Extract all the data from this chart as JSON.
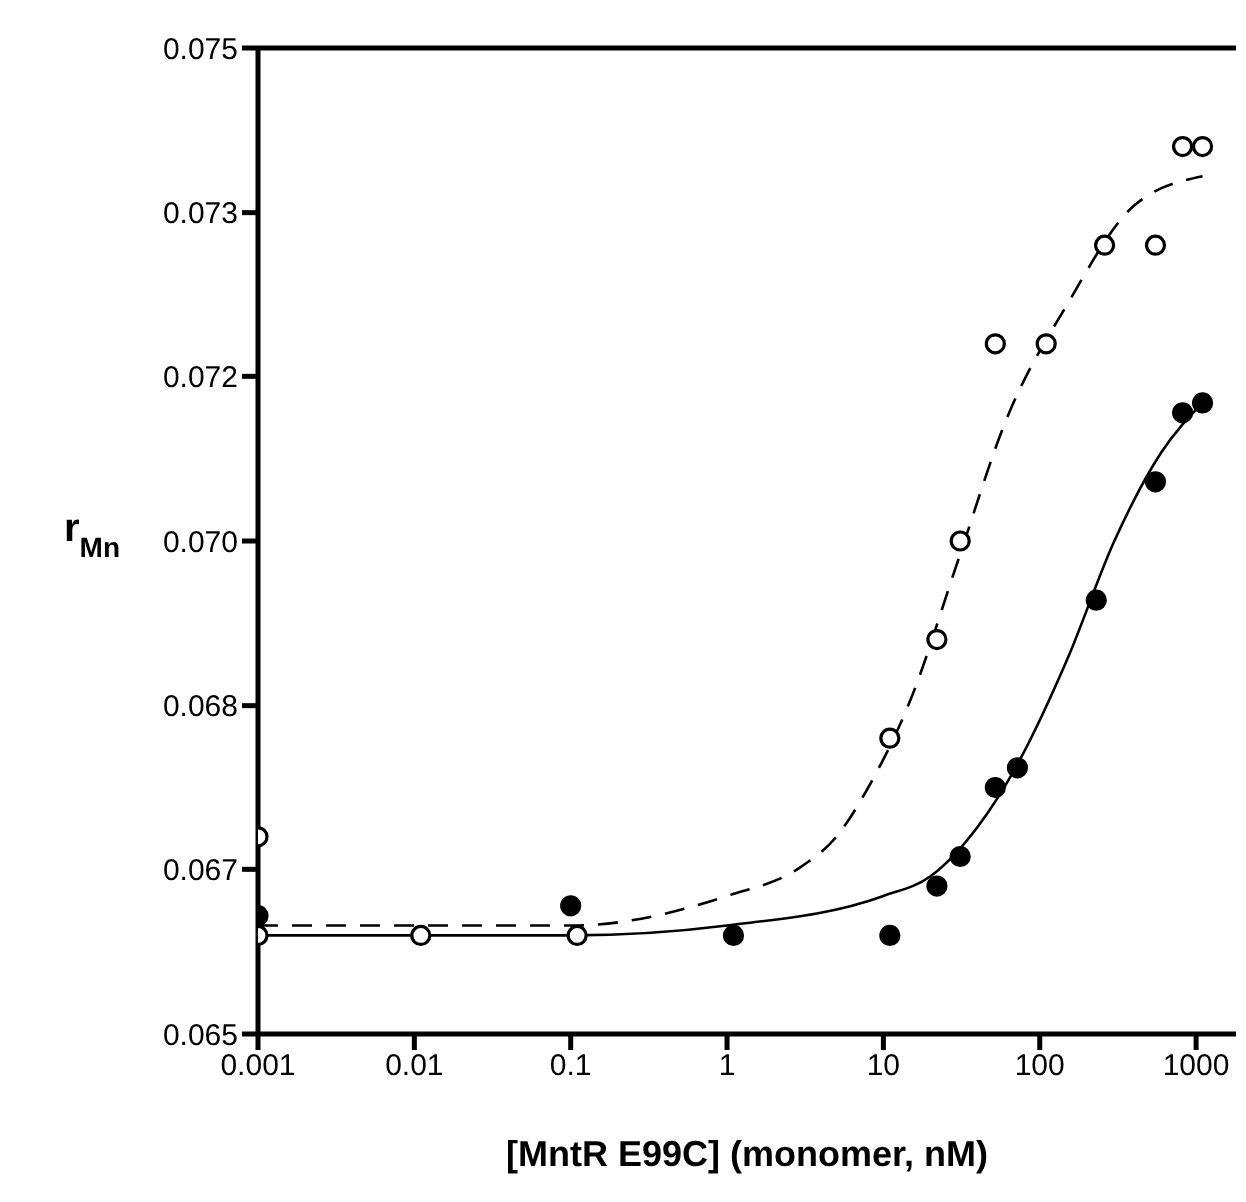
{
  "chart_data": {
    "type": "scatter",
    "xlabel": "[MntR E99C] (monomer, nM)",
    "ylabel": "r$_{Mn}$",
    "log": "x",
    "xlim": [
      0.001,
      1800
    ],
    "xticks": [
      0.001,
      0.01,
      0.1,
      1,
      10,
      100,
      1000
    ],
    "ylim": [
      0.065,
      0.075
    ],
    "yticks": [
      {
        "value": 0.065,
        "label": "0.065"
      },
      {
        "value": 0.06667,
        "label": "0.067"
      },
      {
        "value": 0.06833,
        "label": "0.068"
      },
      {
        "value": 0.07,
        "label": "0.070"
      },
      {
        "value": 0.07167,
        "label": "0.072"
      },
      {
        "value": 0.07333,
        "label": "0.073"
      },
      {
        "value": 0.075,
        "label": "0.075"
      }
    ],
    "series": [
      {
        "type": "line",
        "line_style": "dashed",
        "marker": "none",
        "color": "#000000",
        "x": [
          0.001,
          0.1,
          1,
          3,
          5,
          8,
          15,
          30,
          60,
          150,
          400,
          1100
        ],
        "values": [
          0.0661,
          0.0661,
          0.0664,
          0.0667,
          0.067,
          0.0675,
          0.0684,
          0.0698,
          0.0712,
          0.0724,
          0.0734,
          0.0737
        ]
      },
      {
        "type": "line",
        "line_style": "solid",
        "marker": "none",
        "color": "#000000",
        "x": [
          0.001,
          0.1,
          1,
          10,
          20,
          40,
          70,
          150,
          300,
          600,
          1100
        ],
        "values": [
          0.066,
          0.066,
          0.0661,
          0.0664,
          0.0666,
          0.0671,
          0.0677,
          0.0688,
          0.07,
          0.0709,
          0.0714
        ]
      },
      {
        "marker": "circle",
        "color": "#ffffff",
        "x": [
          0.001,
          0.001,
          0.011,
          0.11,
          11,
          22,
          31,
          52,
          110,
          260,
          550,
          820,
          1100
        ],
        "values": [
          0.067,
          0.066,
          0.066,
          0.066,
          0.068,
          0.069,
          0.07,
          0.072,
          0.072,
          0.073,
          0.073,
          0.074,
          0.074
        ]
      },
      {
        "marker": "circle",
        "color": "#000000",
        "x": [
          0.001,
          0.1,
          1.1,
          11,
          22,
          31,
          52,
          72,
          230,
          550,
          820,
          1100
        ],
        "values": [
          0.0662,
          0.0663,
          0.066,
          0.066,
          0.0665,
          0.0668,
          0.0675,
          0.0677,
          0.0694,
          0.0706,
          0.0713,
          0.0714
        ]
      }
    ]
  }
}
